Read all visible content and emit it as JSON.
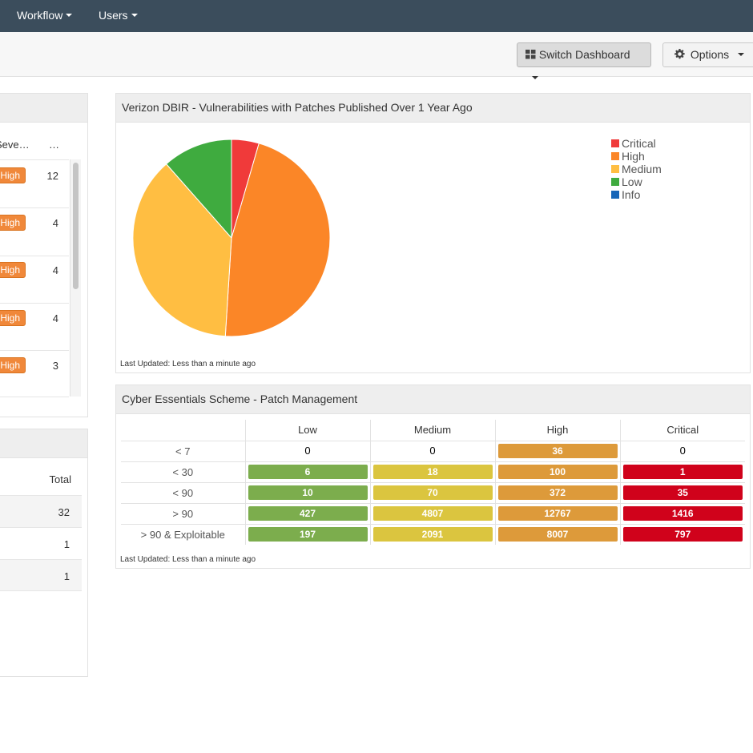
{
  "nav": {
    "items": [
      {
        "label": "Workflow"
      },
      {
        "label": "Users"
      }
    ]
  },
  "toolbar": {
    "switch_label": "Switch Dashboard",
    "options_label": "Options"
  },
  "left_widget_1": {
    "col_level": "Seve…",
    "col_count": "…",
    "rows": [
      {
        "severity": "High",
        "count": "12"
      },
      {
        "severity": "High",
        "count": "4"
      },
      {
        "severity": "High",
        "count": "4"
      },
      {
        "severity": "High",
        "count": "4"
      },
      {
        "severity": "High",
        "count": "3"
      }
    ]
  },
  "left_widget_2": {
    "col_total": "Total",
    "rows": [
      {
        "total": "32"
      },
      {
        "total": "1"
      },
      {
        "total": "1"
      }
    ]
  },
  "pie_widget": {
    "title": "Verizon DBIR - Vulnerabilities with Patches Published Over 1 Year Ago",
    "updated": "Last Updated: Less than a minute ago"
  },
  "chart_data": {
    "type": "pie",
    "title": "Verizon DBIR - Vulnerabilities with Patches Published Over 1 Year Ago",
    "legend_position": "top-right",
    "slices": [
      {
        "label": "Critical",
        "value": 4.5,
        "color": "#f03a3a"
      },
      {
        "label": "High",
        "value": 46.5,
        "color": "#fb8627"
      },
      {
        "label": "Medium",
        "value": 37.5,
        "color": "#ffbe42"
      },
      {
        "label": "Low",
        "value": 11.5,
        "color": "#3fab3f"
      },
      {
        "label": "Info",
        "value": 0,
        "color": "#1565b8"
      }
    ]
  },
  "ce_widget": {
    "title": "Cyber Essentials Scheme - Patch Management",
    "updated": "Last Updated: Less than a minute ago",
    "columns": [
      "Low",
      "Medium",
      "High",
      "Critical"
    ],
    "rows": [
      {
        "label": "< 7",
        "values": [
          "0",
          "0",
          "36",
          "0"
        ]
      },
      {
        "label": "< 30",
        "values": [
          "6",
          "18",
          "100",
          "1"
        ]
      },
      {
        "label": "< 90",
        "values": [
          "10",
          "70",
          "372",
          "35"
        ]
      },
      {
        "label": "> 90",
        "values": [
          "427",
          "4807",
          "12767",
          "1416"
        ]
      },
      {
        "label": "> 90 & Exploitable",
        "values": [
          "197",
          "2091",
          "8007",
          "797"
        ]
      }
    ],
    "cell_colors": {
      "Low": "#7cad4d",
      "Medium": "#dbc53f",
      "High": "#dd9a3a",
      "Critical": "#d0021b"
    }
  }
}
